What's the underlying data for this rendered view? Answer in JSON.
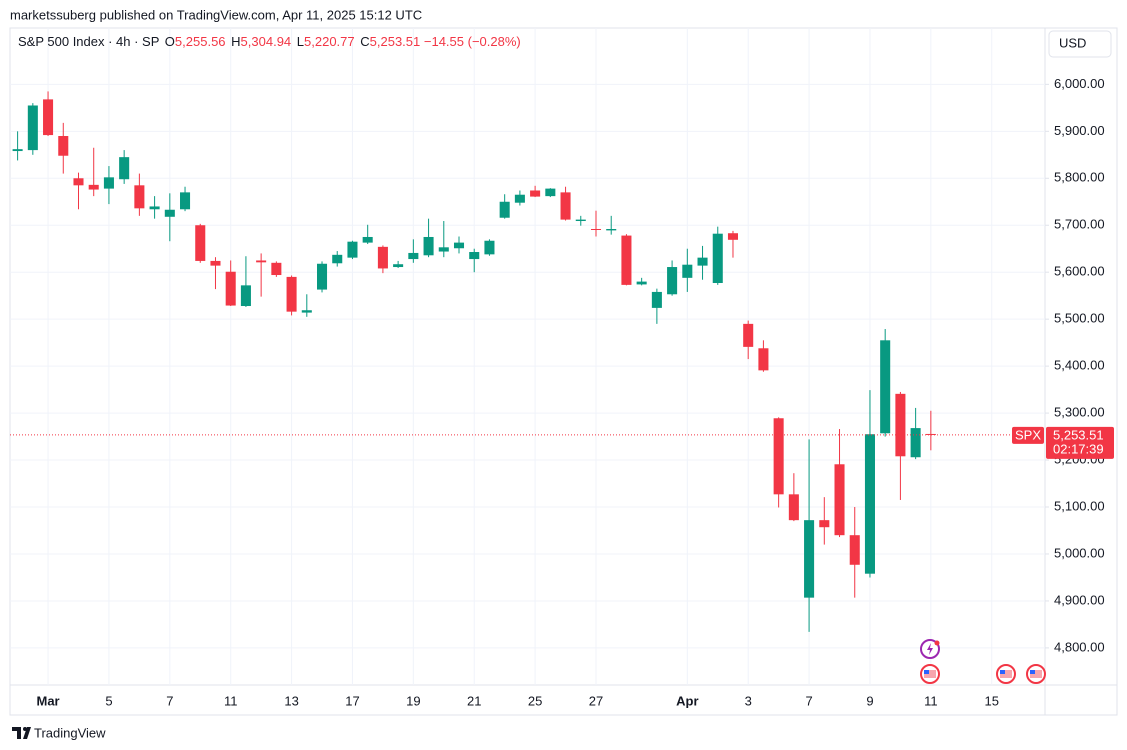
{
  "header": {
    "published": "marketssuberg published on TradingView.com, Apr 11, 2025 15:12 UTC",
    "symbol": "S&P 500 Index · 4h · SP",
    "o_label": "O",
    "o": "5,255.56",
    "h_label": "H",
    "h": "5,304.94",
    "l_label": "L",
    "l": "5,220.77",
    "c_label": "C",
    "c": "5,253.51",
    "change": "−14.55 (−0.28%)",
    "currency": "USD"
  },
  "chart_data": {
    "type": "candlestick",
    "up_color": "#089981",
    "down_color": "#f23645",
    "grid": true,
    "series": [
      {
        "name": "SPX",
        "open": [
          5858,
          5860,
          5968,
          5890,
          5800,
          5786,
          5778,
          5798,
          5785,
          5734,
          5718,
          5734,
          5700,
          5624,
          5601,
          5528,
          5625,
          5620,
          5590,
          5514,
          5563,
          5619,
          5631,
          5663,
          5654,
          5611,
          5628,
          5636,
          5644,
          5651,
          5628,
          5638,
          5716,
          5748,
          5774,
          5762,
          5770,
          5709,
          5692,
          5689,
          5678,
          5574,
          5524,
          5553,
          5588,
          5614,
          5577,
          5683,
          5490,
          5438,
          5289,
          5127,
          4907,
          5072,
          5191,
          5040,
          4958,
          5257,
          5341,
          5206,
          5255.56
        ],
        "high": [
          5900,
          5960,
          5985,
          5918,
          5812,
          5865,
          5826,
          5860,
          5810,
          5762,
          5768,
          5782,
          5703,
          5632,
          5625,
          5634,
          5640,
          5623,
          5593,
          5553,
          5623,
          5645,
          5667,
          5701,
          5657,
          5624,
          5670,
          5714,
          5709,
          5676,
          5650,
          5670,
          5766,
          5774,
          5784,
          5779,
          5782,
          5720,
          5731,
          5720,
          5681,
          5588,
          5565,
          5625,
          5650,
          5656,
          5697,
          5688,
          5497,
          5455,
          5291,
          5172,
          5244,
          5121,
          5266,
          5100,
          5349,
          5479,
          5345,
          5311,
          5304.94
        ],
        "low": [
          5838,
          5850,
          5890,
          5810,
          5734,
          5762,
          5745,
          5788,
          5720,
          5714,
          5666,
          5730,
          5620,
          5564,
          5528,
          5526,
          5548,
          5590,
          5508,
          5505,
          5557,
          5612,
          5628,
          5660,
          5598,
          5609,
          5620,
          5632,
          5632,
          5640,
          5600,
          5635,
          5714,
          5742,
          5760,
          5760,
          5710,
          5699,
          5676,
          5680,
          5572,
          5572,
          5490,
          5550,
          5558,
          5584,
          5573,
          5631,
          5415,
          5388,
          5099,
          5070,
          4834,
          5020,
          5036,
          4907,
          4950,
          5250,
          5115,
          5202,
          5220.77
        ],
        "close": [
          5862,
          5955,
          5892,
          5848,
          5785,
          5776,
          5802,
          5845,
          5736,
          5740,
          5733,
          5770,
          5624,
          5614,
          5529,
          5572,
          5621,
          5594,
          5516,
          5519,
          5618,
          5637,
          5665,
          5675,
          5608,
          5617,
          5641,
          5675,
          5653,
          5663,
          5643,
          5667,
          5750,
          5765,
          5761,
          5778,
          5712,
          5712,
          5690,
          5692,
          5573,
          5580,
          5558,
          5611,
          5616,
          5631,
          5682,
          5669,
          5441,
          5391,
          5127,
          5072,
          5072,
          5057,
          5040,
          4977,
          5255,
          5455,
          5208,
          5268.06,
          5253.51
        ]
      }
    ],
    "last_price": {
      "value_label": "5,253.51",
      "countdown": "02:17:39"
    },
    "xlim": [
      -0.5,
      67.5
    ],
    "xticks": [
      {
        "value": 2,
        "label": "Mar"
      },
      {
        "value": 6,
        "label": "5"
      },
      {
        "value": 10,
        "label": "7"
      },
      {
        "value": 14,
        "label": "11"
      },
      {
        "value": 18,
        "label": "13"
      },
      {
        "value": 22,
        "label": "17"
      },
      {
        "value": 26,
        "label": "19"
      },
      {
        "value": 30,
        "label": "21"
      },
      {
        "value": 34,
        "label": "25"
      },
      {
        "value": 38,
        "label": "27"
      },
      {
        "value": 44,
        "label": "Apr"
      },
      {
        "value": 48,
        "label": "3"
      },
      {
        "value": 52,
        "label": "7"
      },
      {
        "value": 56,
        "label": "9"
      },
      {
        "value": 60,
        "label": "11"
      },
      {
        "value": 64,
        "label": "15"
      }
    ],
    "ylim": [
      4721,
      6120
    ],
    "yticks": [
      {
        "value": 4800,
        "label": "4,800.00"
      },
      {
        "value": 4900,
        "label": "4,900.00"
      },
      {
        "value": 5000,
        "label": "5,000.00"
      },
      {
        "value": 5100,
        "label": "5,100.00"
      },
      {
        "value": 5200,
        "label": "5,200.00"
      },
      {
        "value": 5300,
        "label": "5,300.00"
      },
      {
        "value": 5400,
        "label": "5,400.00"
      },
      {
        "value": 5500,
        "label": "5,500.00"
      },
      {
        "value": 5600,
        "label": "5,600.00"
      },
      {
        "value": 5700,
        "label": "5,700.00"
      },
      {
        "value": 5800,
        "label": "5,800.00"
      },
      {
        "value": 5900,
        "label": "5,900.00"
      },
      {
        "value": 6000,
        "label": "6,000.00"
      }
    ]
  },
  "footer": {
    "brand": "TradingView"
  }
}
